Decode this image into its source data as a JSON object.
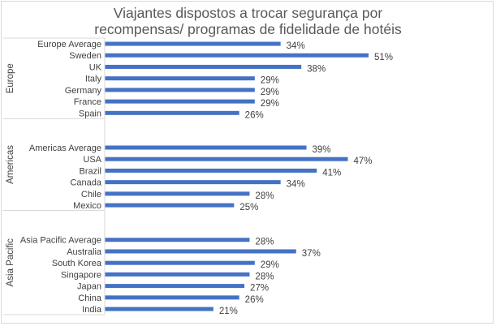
{
  "chart_data": {
    "type": "bar",
    "orientation": "horizontal",
    "title_lines": [
      "Viajantes dispostos a trocar  segurança por",
      "recompensas/ programas de fidelidade de hotéis"
    ],
    "groups": [
      {
        "name": "Europe",
        "categories": [
          "Europe Average",
          "Sweden",
          "UK",
          "Italy",
          "Germany",
          "France",
          "Spain"
        ],
        "values": [
          34,
          51,
          38,
          29,
          29,
          29,
          26
        ]
      },
      {
        "name": "Americas",
        "categories": [
          "Americas Average",
          "USA",
          "Brazil",
          "Canada",
          "Chile",
          "Mexico"
        ],
        "values": [
          39,
          47,
          41,
          34,
          28,
          25
        ]
      },
      {
        "name": "Asia Pacific",
        "categories": [
          "Asia Pacific Average",
          "Australia",
          "South Korea",
          "Singapore",
          "Japan",
          "China",
          "India"
        ],
        "values": [
          28,
          37,
          29,
          28,
          27,
          26,
          21
        ]
      }
    ],
    "value_format": "percent",
    "xlim": [
      0,
      51
    ],
    "grid": false,
    "legend": "none",
    "bar_color": "#4472C4"
  }
}
